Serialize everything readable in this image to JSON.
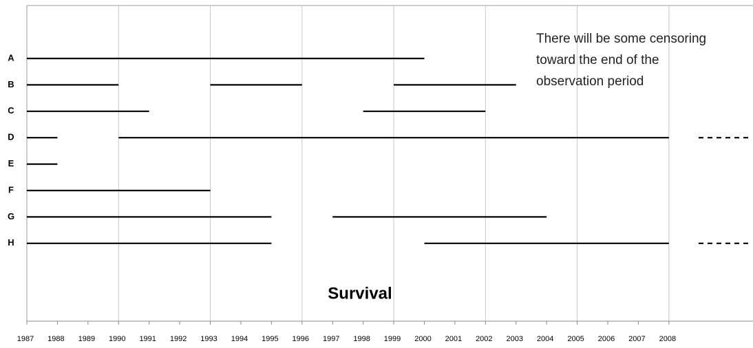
{
  "chart_data": {
    "type": "timeline",
    "title": "Survival",
    "annotation_lines": [
      "There will be some censoring",
      "toward the end of the",
      "observation period"
    ],
    "xlim": [
      1987,
      2010.75
    ],
    "xticks": [
      1987,
      1988,
      1989,
      1990,
      1991,
      1992,
      1993,
      1994,
      1995,
      1996,
      1997,
      1998,
      1999,
      2000,
      2001,
      2002,
      2003,
      2004,
      2005,
      2006,
      2007,
      2008
    ],
    "grid_lines": [
      1990,
      1993,
      1996,
      1999,
      2002,
      2005,
      2008
    ],
    "color": "#000000",
    "series": [
      {
        "name": "A",
        "segments": [
          [
            1987,
            2000
          ]
        ],
        "censored": false
      },
      {
        "name": "B",
        "segments": [
          [
            1987,
            1990
          ],
          [
            1993,
            1996
          ],
          [
            1999,
            2003
          ]
        ],
        "censored": false
      },
      {
        "name": "C",
        "segments": [
          [
            1987,
            1991
          ],
          [
            1998,
            2002
          ]
        ],
        "censored": false
      },
      {
        "name": "D",
        "segments": [
          [
            1987,
            1988
          ],
          [
            1990,
            2008
          ]
        ],
        "censored": true
      },
      {
        "name": "E",
        "segments": [
          [
            1987,
            1988
          ]
        ],
        "censored": false
      },
      {
        "name": "F",
        "segments": [
          [
            1987,
            1993
          ]
        ],
        "censored": false
      },
      {
        "name": "G",
        "segments": [
          [
            1987,
            1995
          ],
          [
            1997,
            2004
          ]
        ],
        "censored": false
      },
      {
        "name": "H",
        "segments": [
          [
            1987,
            1995
          ],
          [
            2000,
            2008
          ]
        ],
        "censored": true
      }
    ]
  }
}
